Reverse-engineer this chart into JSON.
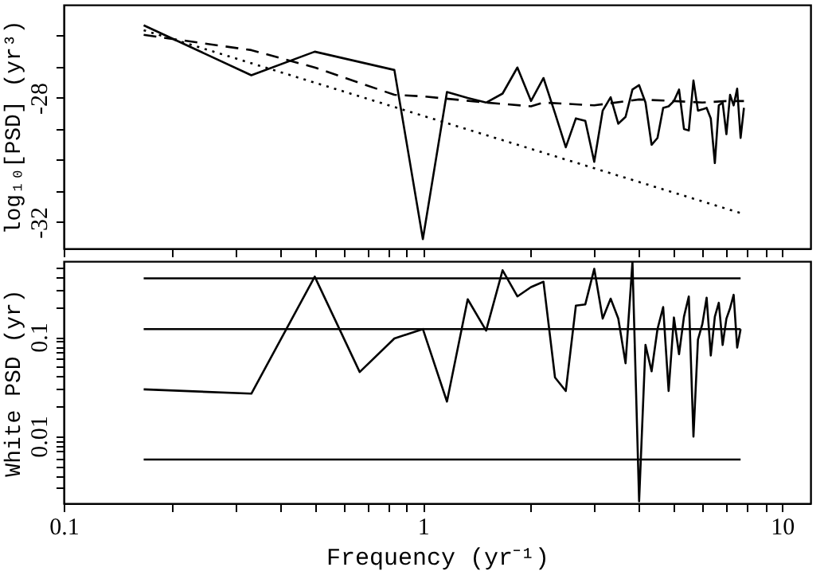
{
  "chart_data": [
    {
      "type": "line",
      "ylabel": "log₁₀[PSD] (yr³)",
      "xlim": [
        0.1,
        12
      ],
      "ylim": [
        -32.85,
        -25
      ],
      "log": "x",
      "grid": false,
      "tick_labels": "y",
      "xticks": [
        0.1,
        {
          "value": 0.2,
          "label": null
        },
        {
          "value": 0.3,
          "label": null
        },
        {
          "value": 0.4,
          "label": null
        },
        {
          "value": 0.5,
          "label": null
        },
        {
          "value": 0.6,
          "label": null
        },
        {
          "value": 0.7,
          "label": null
        },
        {
          "value": 0.8,
          "label": null
        },
        {
          "value": 0.9,
          "label": null
        },
        1,
        {
          "value": 2,
          "label": null
        },
        {
          "value": 3,
          "label": null
        },
        {
          "value": 4,
          "label": null
        },
        {
          "value": 5,
          "label": null
        },
        {
          "value": 6,
          "label": null
        },
        {
          "value": 7,
          "label": null
        },
        {
          "value": 8,
          "label": null
        },
        {
          "value": 9,
          "label": null
        },
        10
      ],
      "yticks": [
        {
          "value": -26,
          "label": null
        },
        {
          "value": -27,
          "label": null
        },
        -28,
        {
          "value": -29,
          "label": null
        },
        {
          "value": -30,
          "label": null
        },
        {
          "value": -31,
          "label": null
        },
        -32
      ],
      "series": [
        {
          "color": "#000000",
          "line_style": "solid",
          "x": [
            0.167,
            0.333,
            0.5,
            0.833,
            1.0,
            1.167,
            1.333,
            1.5,
            1.667,
            1.833,
            2.0,
            2.167,
            2.333,
            2.5,
            2.667,
            2.833,
            3.0,
            3.167,
            3.333,
            3.5,
            3.667,
            3.833,
            4.0,
            4.167,
            4.333,
            4.5,
            4.667,
            4.833,
            5.0,
            5.167,
            5.333,
            5.5,
            5.667,
            5.833,
            6.0,
            6.167,
            6.333,
            6.5,
            6.667,
            6.833,
            7.0,
            7.167,
            7.333,
            7.5,
            7.667,
            7.833
          ],
          "values": [
            -25.66,
            -27.27,
            -26.51,
            -27.1,
            -32.55,
            -27.81,
            -28.0,
            -28.15,
            -27.86,
            -27.02,
            -28.1,
            -27.36,
            -28.49,
            -29.59,
            -28.66,
            -28.74,
            -30.06,
            -28.41,
            -27.98,
            -28.83,
            -28.61,
            -27.73,
            -27.59,
            -28.15,
            -29.51,
            -29.29,
            -28.32,
            -28.27,
            -28.1,
            -27.73,
            -29.0,
            -29.05,
            -27.44,
            -28.41,
            -28.37,
            -28.32,
            -28.66,
            -30.1,
            -28.24,
            -28.15,
            -29.17,
            -27.9,
            -28.24,
            -27.7,
            -29.29,
            -28.32
          ]
        },
        {
          "color": "#000000",
          "line_style": "dashed",
          "x": [
            0.167,
            0.333,
            0.5,
            0.833,
            1.0,
            1.5,
            2.0,
            2.167,
            3.0,
            4.0,
            5.0,
            6.0,
            7.0,
            7.833
          ],
          "values": [
            -25.97,
            -26.46,
            -27.02,
            -27.9,
            -27.95,
            -28.15,
            -28.27,
            -28.15,
            -28.24,
            -28.05,
            -28.1,
            -28.15,
            -28.1,
            -28.1
          ]
        },
        {
          "color": "#000000",
          "line_style": "dotted",
          "x": [
            0.167,
            7.667
          ],
          "values": [
            -25.82,
            -31.71
          ]
        }
      ]
    },
    {
      "type": "line",
      "ylabel": "White PSD (yr)",
      "xlabel": "Frequency (yr⁻¹)",
      "xlim": [
        0.1,
        12
      ],
      "ylim": [
        0.0021,
        0.58
      ],
      "log": "xy",
      "grid": false,
      "xticks": [
        0.1,
        {
          "value": 0.2,
          "label": null
        },
        {
          "value": 0.3,
          "label": null
        },
        {
          "value": 0.4,
          "label": null
        },
        {
          "value": 0.5,
          "label": null
        },
        {
          "value": 0.6,
          "label": null
        },
        {
          "value": 0.7,
          "label": null
        },
        {
          "value": 0.8,
          "label": null
        },
        {
          "value": 0.9,
          "label": null
        },
        1,
        {
          "value": 2,
          "label": null
        },
        {
          "value": 3,
          "label": null
        },
        {
          "value": 4,
          "label": null
        },
        {
          "value": 5,
          "label": null
        },
        {
          "value": 6,
          "label": null
        },
        {
          "value": 7,
          "label": null
        },
        {
          "value": 8,
          "label": null
        },
        {
          "value": 9,
          "label": null
        },
        10
      ],
      "yticks": [
        {
          "value": 0.003,
          "label": null
        },
        {
          "value": 0.004,
          "label": null
        },
        {
          "value": 0.005,
          "label": null
        },
        {
          "value": 0.006,
          "label": null
        },
        {
          "value": 0.007,
          "label": null
        },
        {
          "value": 0.008,
          "label": null
        },
        {
          "value": 0.009,
          "label": null
        },
        0.01,
        {
          "value": 0.02,
          "label": null
        },
        {
          "value": 0.03,
          "label": null
        },
        {
          "value": 0.04,
          "label": null
        },
        {
          "value": 0.05,
          "label": null
        },
        {
          "value": 0.06,
          "label": null
        },
        {
          "value": 0.07,
          "label": null
        },
        {
          "value": 0.08,
          "label": null
        },
        {
          "value": 0.09,
          "label": null
        },
        0.1,
        {
          "value": 0.2,
          "label": null
        },
        {
          "value": 0.3,
          "label": null
        },
        {
          "value": 0.4,
          "label": null
        },
        {
          "value": 0.5,
          "label": null
        }
      ],
      "series": [
        {
          "color": "#000000",
          "line_style": "solid",
          "x": [
            0.167,
            0.333,
            0.5,
            0.667,
            0.833,
            1.0,
            1.167,
            1.333,
            1.5,
            1.667,
            1.833,
            2.0,
            2.167,
            2.333,
            2.5,
            2.667,
            2.833,
            3.0,
            3.167,
            3.333,
            3.5,
            3.667,
            3.833,
            4.0,
            4.167,
            4.333,
            4.5,
            4.667,
            4.833,
            5.0,
            5.167,
            5.333,
            5.5,
            5.667,
            5.833,
            6.0,
            6.167,
            6.333,
            6.5,
            6.667,
            6.833,
            7.0,
            7.167,
            7.333,
            7.5,
            7.667
          ],
          "values": [
            0.0296,
            0.0268,
            0.405,
            0.0443,
            0.0964,
            0.12,
            0.0223,
            0.24,
            0.116,
            0.47,
            0.256,
            0.318,
            0.36,
            0.039,
            0.0285,
            0.207,
            0.213,
            0.486,
            0.153,
            0.243,
            0.153,
            0.0543,
            0.57,
            0.0022,
            0.083,
            0.045,
            0.12,
            0.2,
            0.0285,
            0.157,
            0.067,
            0.16,
            0.256,
            0.0099,
            0.094,
            0.135,
            0.249,
            0.065,
            0.16,
            0.221,
            0.083,
            0.153,
            0.195,
            0.266,
            0.078,
            0.12
          ]
        },
        {
          "color": "#000000",
          "line_style": "solid",
          "x": [
            0.167,
            7.667
          ],
          "values": [
            0.39,
            0.39
          ]
        },
        {
          "color": "#000000",
          "line_style": "solid",
          "x": [
            0.167,
            7.667
          ],
          "values": [
            0.12,
            0.12
          ]
        },
        {
          "color": "#000000",
          "line_style": "solid",
          "x": [
            0.167,
            7.667
          ],
          "values": [
            0.0058,
            0.0058
          ]
        }
      ]
    }
  ]
}
